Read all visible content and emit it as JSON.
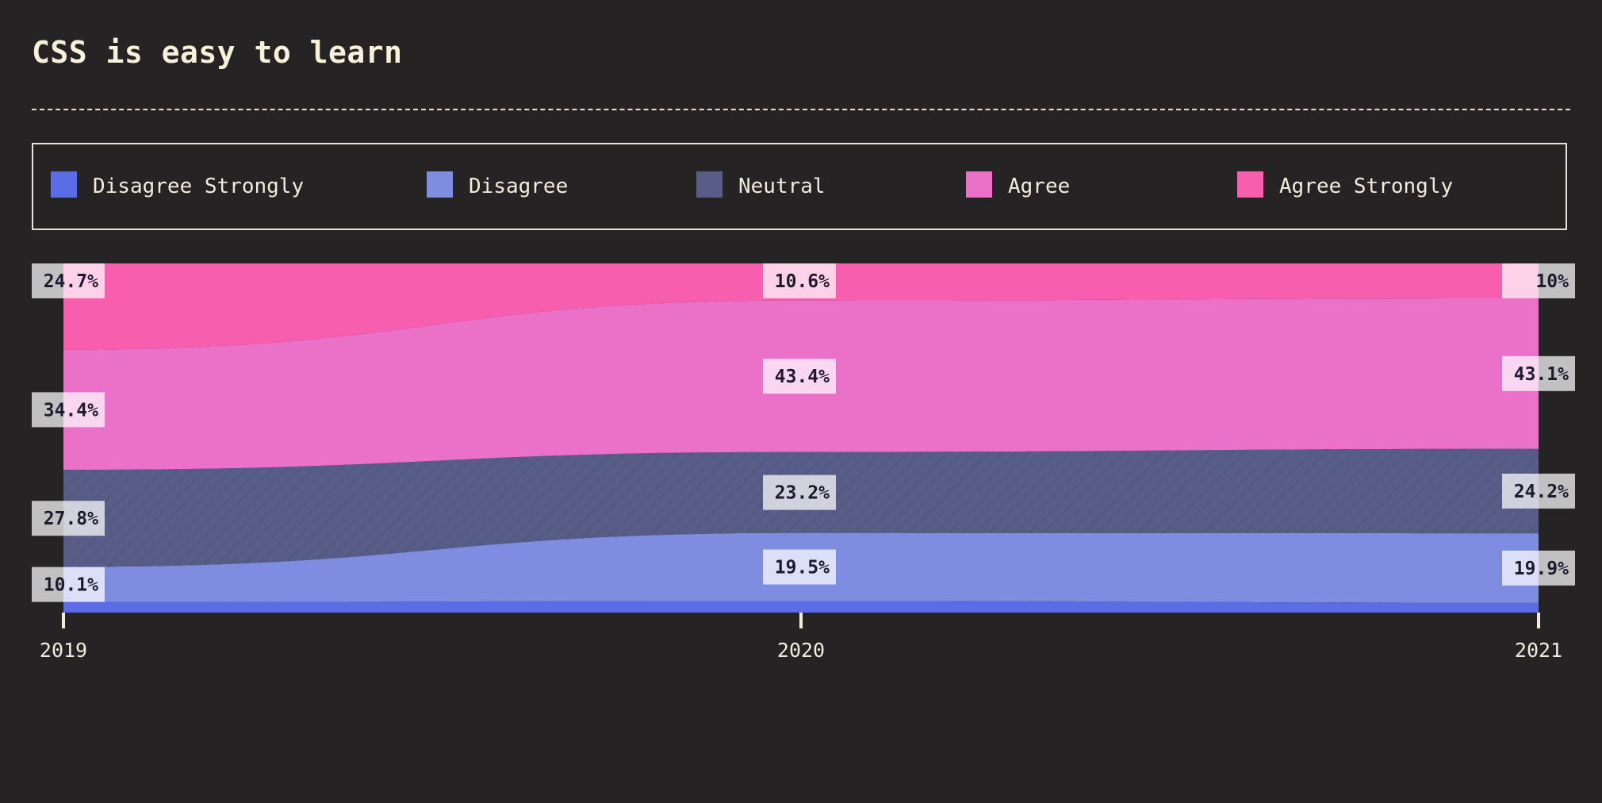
{
  "page_title": "CSS is easy to learn",
  "legend": {
    "items": [
      {
        "label": "Disagree Strongly",
        "color": "#5a6ce6"
      },
      {
        "label": "Disagree",
        "color": "#7f8de0"
      },
      {
        "label": "Neutral",
        "color": "#575d87"
      },
      {
        "label": "Agree",
        "color": "#ea70c8"
      },
      {
        "label": "Agree Strongly",
        "color": "#f75fae"
      }
    ]
  },
  "chart_data": {
    "type": "area",
    "stacked": true,
    "normalized": true,
    "title": "CSS is easy to learn",
    "x": [
      "2019",
      "2020",
      "2021"
    ],
    "ylim": [
      0,
      100
    ],
    "grid": false,
    "legend_position": "top",
    "series": [
      {
        "name": "Disagree Strongly",
        "color": "#5a6ce6",
        "values": [
          3.0,
          3.3,
          2.8
        ],
        "labels": [
          "",
          "",
          ""
        ]
      },
      {
        "name": "Disagree",
        "color": "#7f8de0",
        "values": [
          10.1,
          19.5,
          19.9
        ],
        "labels": [
          "10.1%",
          "19.5%",
          "19.9%"
        ]
      },
      {
        "name": "Neutral",
        "color": "#575d87",
        "values": [
          27.8,
          23.2,
          24.2
        ],
        "labels": [
          "27.8%",
          "23.2%",
          "24.2%"
        ]
      },
      {
        "name": "Agree",
        "color": "#ea70c8",
        "values": [
          34.4,
          43.4,
          43.1
        ],
        "labels": [
          "34.4%",
          "43.4%",
          "43.1%"
        ]
      },
      {
        "name": "Agree Strongly",
        "color": "#f75fae",
        "values": [
          24.7,
          10.6,
          10.0
        ],
        "labels": [
          "24.7%",
          "10.6%",
          "10%"
        ]
      }
    ]
  }
}
